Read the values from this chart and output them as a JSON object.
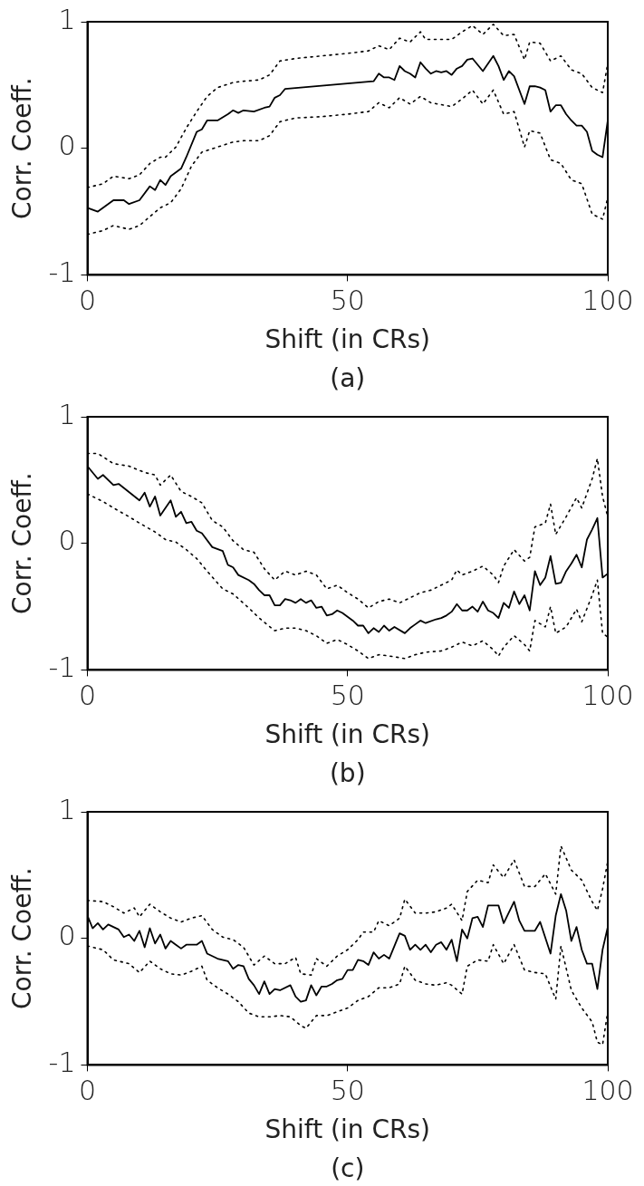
{
  "chart_data": [
    {
      "type": "line",
      "xlabel": "Shift (in CRs)",
      "ylabel": "Corr. Coeff.",
      "annotations": [
        "(a)"
      ],
      "xlim": [
        0,
        100
      ],
      "ylim": [
        -1,
        1
      ],
      "xticks": [
        0,
        50,
        100
      ],
      "yticks": [
        -1,
        0,
        1
      ],
      "grid": false,
      "legend": false,
      "marker": "none",
      "series": [
        {
          "color": "#000000",
          "line_style": "solid",
          "x": [
            0,
            2,
            5,
            7,
            8,
            10,
            12,
            13,
            14,
            15,
            16,
            18,
            19,
            21,
            22,
            23,
            25,
            27,
            28,
            29,
            30,
            32,
            34,
            35,
            36,
            37,
            38,
            55,
            56,
            57,
            58,
            59,
            60,
            61,
            62,
            63,
            64,
            65,
            66,
            67,
            68,
            69,
            70,
            71,
            72,
            73,
            74,
            75,
            76,
            78,
            79,
            80,
            81,
            82,
            84,
            85,
            86,
            87,
            88,
            89,
            90,
            91,
            92,
            93,
            94,
            95,
            96,
            97,
            98,
            99,
            100
          ],
          "values": [
            -0.47,
            -0.5,
            -0.41,
            -0.41,
            -0.44,
            -0.41,
            -0.3,
            -0.33,
            -0.25,
            -0.29,
            -0.22,
            -0.16,
            -0.07,
            0.13,
            0.15,
            0.22,
            0.22,
            0.27,
            0.3,
            0.28,
            0.3,
            0.29,
            0.32,
            0.33,
            0.4,
            0.42,
            0.47,
            0.53,
            0.59,
            0.56,
            0.56,
            0.54,
            0.65,
            0.61,
            0.59,
            0.56,
            0.68,
            0.63,
            0.59,
            0.61,
            0.6,
            0.61,
            0.58,
            0.63,
            0.65,
            0.7,
            0.71,
            0.66,
            0.61,
            0.73,
            0.65,
            0.54,
            0.61,
            0.57,
            0.35,
            0.49,
            0.49,
            0.48,
            0.46,
            0.29,
            0.34,
            0.34,
            0.27,
            0.22,
            0.18,
            0.18,
            0.13,
            -0.02,
            -0.05,
            -0.07,
            0.22
          ]
        },
        {
          "color": "#000000",
          "line_style": "dotted",
          "x": [
            0,
            3,
            5,
            8,
            10,
            12,
            14,
            15,
            17,
            19,
            21,
            23,
            25,
            28,
            30,
            33,
            35,
            37,
            40,
            45,
            50,
            54,
            56,
            58,
            60,
            62,
            64,
            65,
            70,
            72,
            74,
            76,
            78,
            80,
            82,
            84,
            85,
            87,
            89,
            91,
            93,
            95,
            97,
            99,
            100
          ],
          "values": [
            -0.31,
            -0.28,
            -0.22,
            -0.24,
            -0.21,
            -0.12,
            -0.07,
            -0.07,
            0.01,
            0.16,
            0.29,
            0.41,
            0.48,
            0.52,
            0.53,
            0.54,
            0.58,
            0.69,
            0.71,
            0.73,
            0.75,
            0.77,
            0.81,
            0.78,
            0.87,
            0.84,
            0.92,
            0.86,
            0.86,
            0.92,
            0.97,
            0.9,
            0.98,
            0.89,
            0.9,
            0.7,
            0.84,
            0.83,
            0.69,
            0.73,
            0.62,
            0.59,
            0.48,
            0.44,
            0.67
          ]
        },
        {
          "color": "#000000",
          "line_style": "dotted",
          "x": [
            0,
            3,
            5,
            8,
            10,
            12,
            14,
            16,
            18,
            20,
            22,
            25,
            28,
            30,
            33,
            35,
            37,
            40,
            45,
            50,
            54,
            56,
            58,
            60,
            62,
            64,
            66,
            70,
            72,
            74,
            76,
            78,
            80,
            82,
            84,
            85,
            87,
            89,
            91,
            93,
            95,
            97,
            99,
            100
          ],
          "values": [
            -0.68,
            -0.65,
            -0.61,
            -0.64,
            -0.61,
            -0.54,
            -0.47,
            -0.43,
            -0.32,
            -0.14,
            -0.03,
            0.01,
            0.05,
            0.06,
            0.06,
            0.1,
            0.21,
            0.24,
            0.25,
            0.27,
            0.29,
            0.36,
            0.32,
            0.4,
            0.35,
            0.41,
            0.36,
            0.33,
            0.39,
            0.46,
            0.35,
            0.46,
            0.27,
            0.29,
            0.01,
            0.14,
            0.12,
            -0.09,
            -0.12,
            -0.25,
            -0.28,
            -0.52,
            -0.56,
            -0.39
          ]
        }
      ]
    },
    {
      "type": "line",
      "xlabel": "Shift (in CRs)",
      "ylabel": "Corr. Coeff.",
      "annotations": [
        "(b)"
      ],
      "xlim": [
        0,
        100
      ],
      "ylim": [
        -1,
        1
      ],
      "xticks": [
        0,
        50,
        100
      ],
      "yticks": [
        -1,
        0,
        1
      ],
      "grid": false,
      "legend": false,
      "marker": "none",
      "series": [
        {
          "color": "#000000",
          "line_style": "solid",
          "x": [
            0,
            2,
            3,
            5,
            6,
            10,
            11,
            12,
            13,
            14,
            16,
            17,
            18,
            19,
            20,
            21,
            22,
            24,
            26,
            27,
            28,
            29,
            31,
            32,
            33,
            34,
            35,
            36,
            37,
            38,
            39,
            40,
            41,
            42,
            43,
            44,
            45,
            46,
            47,
            48,
            49,
            50,
            51,
            52,
            53,
            54,
            55,
            56,
            57,
            58,
            59,
            61,
            62,
            63,
            64,
            65,
            67,
            68,
            69,
            70,
            71,
            72,
            73,
            74,
            75,
            76,
            77,
            78,
            79,
            80,
            81,
            82,
            83,
            84,
            85,
            86,
            87,
            88,
            89,
            90,
            91,
            92,
            93,
            94,
            95,
            96,
            97,
            98,
            99,
            100
          ],
          "values": [
            0.61,
            0.51,
            0.54,
            0.46,
            0.47,
            0.34,
            0.4,
            0.29,
            0.37,
            0.22,
            0.34,
            0.21,
            0.25,
            0.16,
            0.17,
            0.1,
            0.08,
            -0.03,
            -0.06,
            -0.17,
            -0.19,
            -0.25,
            -0.29,
            -0.32,
            -0.37,
            -0.41,
            -0.41,
            -0.49,
            -0.49,
            -0.44,
            -0.45,
            -0.47,
            -0.44,
            -0.47,
            -0.45,
            -0.51,
            -0.5,
            -0.57,
            -0.56,
            -0.53,
            -0.55,
            -0.58,
            -0.61,
            -0.65,
            -0.65,
            -0.71,
            -0.67,
            -0.7,
            -0.65,
            -0.69,
            -0.66,
            -0.71,
            -0.67,
            -0.64,
            -0.61,
            -0.63,
            -0.6,
            -0.59,
            -0.57,
            -0.54,
            -0.48,
            -0.53,
            -0.53,
            -0.5,
            -0.54,
            -0.46,
            -0.53,
            -0.55,
            -0.59,
            -0.47,
            -0.51,
            -0.38,
            -0.48,
            -0.41,
            -0.53,
            -0.22,
            -0.33,
            -0.27,
            -0.1,
            -0.32,
            -0.31,
            -0.22,
            -0.16,
            -0.09,
            -0.19,
            0.03,
            0.11,
            0.2,
            -0.27,
            -0.24
          ]
        },
        {
          "color": "#000000",
          "line_style": "dotted",
          "x": [
            0,
            2,
            5,
            8,
            11,
            13,
            14,
            16,
            18,
            20,
            22,
            24,
            26,
            28,
            30,
            32,
            34,
            36,
            38,
            40,
            42,
            44,
            46,
            48,
            50,
            52,
            54,
            56,
            58,
            60,
            62,
            64,
            66,
            68,
            70,
            71,
            72,
            74,
            76,
            78,
            79,
            80,
            82,
            84,
            85,
            86,
            88,
            89,
            90,
            92,
            94,
            95,
            97,
            98,
            99,
            100
          ],
          "values": [
            0.71,
            0.71,
            0.63,
            0.61,
            0.56,
            0.54,
            0.46,
            0.54,
            0.41,
            0.37,
            0.32,
            0.18,
            0.13,
            0.02,
            -0.05,
            -0.07,
            -0.2,
            -0.29,
            -0.22,
            -0.25,
            -0.22,
            -0.25,
            -0.36,
            -0.33,
            -0.39,
            -0.44,
            -0.51,
            -0.46,
            -0.44,
            -0.47,
            -0.43,
            -0.39,
            -0.37,
            -0.33,
            -0.29,
            -0.21,
            -0.25,
            -0.22,
            -0.18,
            -0.25,
            -0.31,
            -0.18,
            -0.05,
            -0.14,
            -0.11,
            0.13,
            0.16,
            0.31,
            0.07,
            0.21,
            0.36,
            0.28,
            0.51,
            0.67,
            0.37,
            0.21
          ]
        },
        {
          "color": "#000000",
          "line_style": "dotted",
          "x": [
            0,
            3,
            5,
            8,
            10,
            13,
            15,
            17,
            19,
            21,
            23,
            26,
            28,
            31,
            33,
            36,
            38,
            40,
            42,
            44,
            46,
            48,
            50,
            52,
            54,
            56,
            58,
            61,
            63,
            65,
            68,
            70,
            72,
            74,
            76,
            78,
            79,
            80,
            82,
            84,
            85,
            86,
            88,
            89,
            90,
            92,
            94,
            95,
            97,
            98,
            99,
            100
          ],
          "values": [
            0.39,
            0.33,
            0.28,
            0.21,
            0.16,
            0.09,
            0.03,
            0.01,
            -0.05,
            -0.12,
            -0.22,
            -0.36,
            -0.4,
            -0.51,
            -0.59,
            -0.69,
            -0.67,
            -0.67,
            -0.69,
            -0.73,
            -0.79,
            -0.76,
            -0.8,
            -0.85,
            -0.91,
            -0.88,
            -0.89,
            -0.91,
            -0.88,
            -0.86,
            -0.85,
            -0.82,
            -0.78,
            -0.81,
            -0.77,
            -0.84,
            -0.89,
            -0.82,
            -0.73,
            -0.8,
            -0.85,
            -0.61,
            -0.66,
            -0.5,
            -0.71,
            -0.66,
            -0.52,
            -0.62,
            -0.41,
            -0.29,
            -0.71,
            -0.74
          ]
        }
      ]
    },
    {
      "type": "line",
      "xlabel": "Shift (in CRs)",
      "ylabel": "Corr. Coeff.",
      "annotations": [
        "(c)"
      ],
      "xlim": [
        0,
        100
      ],
      "ylim": [
        -1,
        1
      ],
      "xticks": [
        0,
        50,
        100
      ],
      "yticks": [
        -1,
        0,
        1
      ],
      "grid": false,
      "legend": false,
      "marker": "none",
      "series": [
        {
          "color": "#000000",
          "line_style": "solid",
          "x": [
            0,
            1,
            2,
            3,
            4,
            6,
            7,
            8,
            9,
            10,
            11,
            12,
            13,
            14,
            15,
            16,
            17,
            18,
            19,
            21,
            22,
            23,
            25,
            27,
            28,
            29,
            30,
            31,
            32,
            33,
            34,
            35,
            36,
            37,
            39,
            40,
            41,
            42,
            43,
            44,
            45,
            46,
            47,
            48,
            49,
            50,
            51,
            52,
            53,
            54,
            55,
            56,
            57,
            58,
            59,
            60,
            61,
            62,
            63,
            64,
            65,
            66,
            67,
            68,
            69,
            70,
            71,
            72,
            73,
            74,
            75,
            76,
            77,
            79,
            80,
            82,
            83,
            84,
            86,
            87,
            89,
            90,
            91,
            92,
            93,
            94,
            95,
            96,
            97,
            98,
            99,
            100
          ],
          "values": [
            0.18,
            0.08,
            0.12,
            0.07,
            0.11,
            0.07,
            0.01,
            0.03,
            -0.02,
            0.06,
            -0.07,
            0.08,
            -0.04,
            0.03,
            -0.08,
            -0.02,
            -0.05,
            -0.08,
            -0.05,
            -0.05,
            -0.02,
            -0.12,
            -0.16,
            -0.18,
            -0.24,
            -0.21,
            -0.22,
            -0.32,
            -0.37,
            -0.44,
            -0.34,
            -0.44,
            -0.4,
            -0.41,
            -0.37,
            -0.46,
            -0.5,
            -0.49,
            -0.37,
            -0.45,
            -0.38,
            -0.38,
            -0.36,
            -0.33,
            -0.32,
            -0.25,
            -0.25,
            -0.17,
            -0.18,
            -0.21,
            -0.11,
            -0.16,
            -0.13,
            -0.16,
            -0.06,
            0.04,
            0.02,
            -0.09,
            -0.05,
            -0.09,
            -0.05,
            -0.11,
            -0.05,
            -0.03,
            -0.09,
            -0.01,
            -0.18,
            0.07,
            0.0,
            0.16,
            0.17,
            0.09,
            0.26,
            0.26,
            0.12,
            0.29,
            0.14,
            0.06,
            0.06,
            0.13,
            -0.12,
            0.18,
            0.35,
            0.22,
            -0.02,
            0.09,
            -0.09,
            -0.2,
            -0.2,
            -0.4,
            -0.09,
            0.09
          ]
        },
        {
          "color": "#000000",
          "line_style": "dotted",
          "x": [
            0,
            3,
            5,
            7,
            9,
            10,
            12,
            14,
            16,
            18,
            20,
            22,
            24,
            26,
            28,
            30,
            32,
            34,
            36,
            38,
            40,
            41,
            43,
            44,
            46,
            48,
            50,
            52,
            53,
            55,
            56,
            58,
            60,
            61,
            63,
            65,
            67,
            69,
            70,
            72,
            73,
            75,
            77,
            78,
            80,
            82,
            84,
            86,
            88,
            90,
            91,
            93,
            95,
            97,
            98,
            99,
            100
          ],
          "values": [
            0.3,
            0.29,
            0.25,
            0.2,
            0.24,
            0.17,
            0.27,
            0.21,
            0.16,
            0.13,
            0.16,
            0.18,
            0.07,
            0.01,
            -0.01,
            -0.07,
            -0.21,
            -0.14,
            -0.2,
            -0.2,
            -0.15,
            -0.28,
            -0.29,
            -0.16,
            -0.22,
            -0.14,
            -0.09,
            -0.01,
            0.05,
            0.05,
            0.14,
            0.1,
            0.16,
            0.31,
            0.2,
            0.2,
            0.21,
            0.24,
            0.27,
            0.14,
            0.37,
            0.46,
            0.44,
            0.58,
            0.48,
            0.62,
            0.41,
            0.41,
            0.51,
            0.35,
            0.73,
            0.54,
            0.46,
            0.29,
            0.22,
            0.39,
            0.61
          ]
        },
        {
          "color": "#000000",
          "line_style": "dotted",
          "x": [
            0,
            3,
            5,
            8,
            10,
            12,
            14,
            16,
            18,
            20,
            22,
            23,
            25,
            27,
            29,
            31,
            33,
            35,
            37,
            39,
            41,
            42,
            44,
            46,
            48,
            50,
            52,
            54,
            56,
            58,
            60,
            61,
            63,
            65,
            67,
            69,
            70,
            72,
            73,
            75,
            77,
            78,
            80,
            82,
            84,
            86,
            88,
            90,
            91,
            93,
            95,
            97,
            98,
            99,
            100
          ],
          "values": [
            -0.06,
            -0.09,
            -0.17,
            -0.2,
            -0.27,
            -0.18,
            -0.24,
            -0.28,
            -0.29,
            -0.26,
            -0.22,
            -0.33,
            -0.39,
            -0.44,
            -0.5,
            -0.59,
            -0.62,
            -0.62,
            -0.61,
            -0.62,
            -0.69,
            -0.71,
            -0.61,
            -0.61,
            -0.58,
            -0.55,
            -0.49,
            -0.46,
            -0.39,
            -0.39,
            -0.36,
            -0.22,
            -0.33,
            -0.36,
            -0.37,
            -0.35,
            -0.37,
            -0.44,
            -0.22,
            -0.17,
            -0.18,
            -0.05,
            -0.2,
            -0.05,
            -0.25,
            -0.27,
            -0.28,
            -0.48,
            -0.06,
            -0.41,
            -0.55,
            -0.66,
            -0.82,
            -0.84,
            -0.58
          ]
        }
      ]
    }
  ]
}
